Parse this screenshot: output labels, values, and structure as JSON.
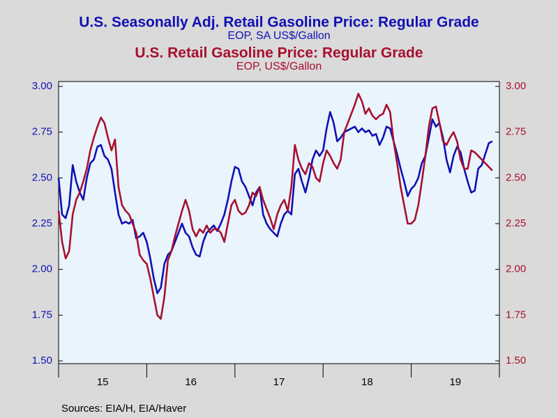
{
  "chart_data": {
    "type": "line",
    "series": [
      {
        "name": "U.S. Seasonally Adj. Retail Gasoline Price: Regular Grade",
        "subtitle": "EOP, SA US$/Gallon",
        "color": "#1010b4",
        "axis": "y",
        "values": [
          2.5,
          2.3,
          2.28,
          2.35,
          2.57,
          2.48,
          2.42,
          2.38,
          2.5,
          2.58,
          2.6,
          2.67,
          2.68,
          2.62,
          2.6,
          2.55,
          2.42,
          2.3,
          2.25,
          2.26,
          2.25,
          2.27,
          2.17,
          2.18,
          2.2,
          2.15,
          2.06,
          1.95,
          1.87,
          1.9,
          2.03,
          2.08,
          2.1,
          2.15,
          2.2,
          2.25,
          2.2,
          2.18,
          2.12,
          2.08,
          2.07,
          2.15,
          2.2,
          2.22,
          2.24,
          2.21,
          2.25,
          2.3,
          2.38,
          2.48,
          2.56,
          2.55,
          2.48,
          2.45,
          2.4,
          2.35,
          2.42,
          2.45,
          2.3,
          2.25,
          2.22,
          2.2,
          2.18,
          2.25,
          2.3,
          2.32,
          2.3,
          2.52,
          2.55,
          2.48,
          2.42,
          2.5,
          2.6,
          2.65,
          2.62,
          2.65,
          2.77,
          2.86,
          2.8,
          2.7,
          2.72,
          2.75,
          2.76,
          2.77,
          2.78,
          2.75,
          2.77,
          2.75,
          2.76,
          2.73,
          2.74,
          2.68,
          2.72,
          2.78,
          2.77,
          2.7,
          2.63,
          2.55,
          2.48,
          2.4,
          2.44,
          2.46,
          2.5,
          2.58,
          2.62,
          2.72,
          2.82,
          2.78,
          2.8,
          2.72,
          2.6,
          2.53,
          2.62,
          2.67,
          2.64,
          2.55,
          2.48,
          2.42,
          2.43,
          2.55,
          2.57,
          2.63,
          2.69,
          2.7
        ]
      },
      {
        "name": "U.S. Retail Gasoline Price: Regular Grade",
        "subtitle": "EOP, US$/Gallon",
        "color": "#a8102e",
        "axis": "y2",
        "values": [
          2.32,
          2.15,
          2.06,
          2.1,
          2.3,
          2.38,
          2.42,
          2.48,
          2.55,
          2.65,
          2.72,
          2.78,
          2.83,
          2.8,
          2.72,
          2.65,
          2.71,
          2.45,
          2.35,
          2.32,
          2.3,
          2.25,
          2.2,
          2.08,
          2.05,
          2.03,
          1.95,
          1.85,
          1.75,
          1.73,
          1.85,
          2.05,
          2.1,
          2.18,
          2.25,
          2.32,
          2.38,
          2.32,
          2.22,
          2.18,
          2.22,
          2.2,
          2.24,
          2.2,
          2.22,
          2.22,
          2.2,
          2.15,
          2.25,
          2.35,
          2.38,
          2.32,
          2.3,
          2.31,
          2.35,
          2.42,
          2.4,
          2.45,
          2.38,
          2.33,
          2.28,
          2.22,
          2.3,
          2.35,
          2.38,
          2.32,
          2.45,
          2.68,
          2.6,
          2.55,
          2.52,
          2.58,
          2.56,
          2.5,
          2.48,
          2.58,
          2.65,
          2.62,
          2.58,
          2.55,
          2.6,
          2.75,
          2.8,
          2.85,
          2.9,
          2.96,
          2.92,
          2.85,
          2.88,
          2.84,
          2.82,
          2.84,
          2.85,
          2.9,
          2.86,
          2.7,
          2.58,
          2.45,
          2.35,
          2.25,
          2.25,
          2.27,
          2.35,
          2.48,
          2.62,
          2.78,
          2.88,
          2.89,
          2.8,
          2.7,
          2.68,
          2.72,
          2.75,
          2.7,
          2.6,
          2.55,
          2.55,
          2.65,
          2.64,
          2.62,
          2.6,
          2.58,
          2.56,
          2.54
        ]
      }
    ],
    "x": [
      15,
      15.04,
      15.08,
      15.12,
      15.16,
      15.2,
      15.24,
      15.28,
      15.32,
      15.36,
      15.4,
      15.44,
      15.48,
      15.52,
      15.56,
      15.6,
      15.64,
      15.68,
      15.72,
      15.76,
      15.8,
      15.84,
      15.88,
      15.92,
      15.96,
      16,
      16.04,
      16.08,
      16.12,
      16.16,
      16.2,
      16.24,
      16.28,
      16.32,
      16.36,
      16.4,
      16.44,
      16.48,
      16.52,
      16.56,
      16.6,
      16.64,
      16.68,
      16.72,
      16.76,
      16.8,
      16.84,
      16.88,
      16.92,
      16.96,
      17,
      17.04,
      17.08,
      17.12,
      17.16,
      17.2,
      17.24,
      17.28,
      17.32,
      17.36,
      17.4,
      17.44,
      17.48,
      17.52,
      17.56,
      17.6,
      17.64,
      17.68,
      17.72,
      17.76,
      17.8,
      17.84,
      17.88,
      17.92,
      17.96,
      18,
      18.04,
      18.08,
      18.12,
      18.16,
      18.2,
      18.24,
      18.28,
      18.32,
      18.36,
      18.4,
      18.44,
      18.48,
      18.52,
      18.56,
      18.6,
      18.64,
      18.68,
      18.72,
      18.76,
      18.8,
      18.84,
      18.88,
      18.92,
      18.96,
      19,
      19.04,
      19.08,
      19.12,
      19.16,
      19.2,
      19.24,
      19.28,
      19.32,
      19.36,
      19.4,
      19.44,
      19.48,
      19.52,
      19.56,
      19.6,
      19.64,
      19.68,
      19.72,
      19.76,
      19.8,
      19.84,
      19.88,
      19.92
    ],
    "xlim": [
      15,
      20
    ],
    "xticks": [
      15,
      16,
      17,
      18,
      19,
      20
    ],
    "year_labels": [
      "15",
      "16",
      "17",
      "18",
      "19"
    ],
    "ylim": [
      1.5,
      3
    ],
    "yticks": [
      {
        "value": 1.5,
        "label": "1.50"
      },
      {
        "value": 1.75,
        "label": "1.75"
      },
      {
        "value": 2,
        "label": "2.00"
      },
      {
        "value": 2.25,
        "label": "2.25"
      },
      {
        "value": 2.5,
        "label": "2.50"
      },
      {
        "value": 2.75,
        "label": "2.75"
      },
      {
        "value": 3,
        "label": "3.00"
      }
    ],
    "y2lim": [
      1.5,
      3
    ],
    "y2ticks": [
      {
        "value": 1.5,
        "label": "1.50"
      },
      {
        "value": 1.75,
        "label": "1.75"
      },
      {
        "value": 2,
        "label": "2.00"
      },
      {
        "value": 2.25,
        "label": "2.25"
      },
      {
        "value": 2.5,
        "label": "2.50"
      },
      {
        "value": 2.75,
        "label": "2.75"
      },
      {
        "value": 3,
        "label": "3.00"
      }
    ],
    "source": "Sources:  EIA/H, EIA/Haver"
  }
}
